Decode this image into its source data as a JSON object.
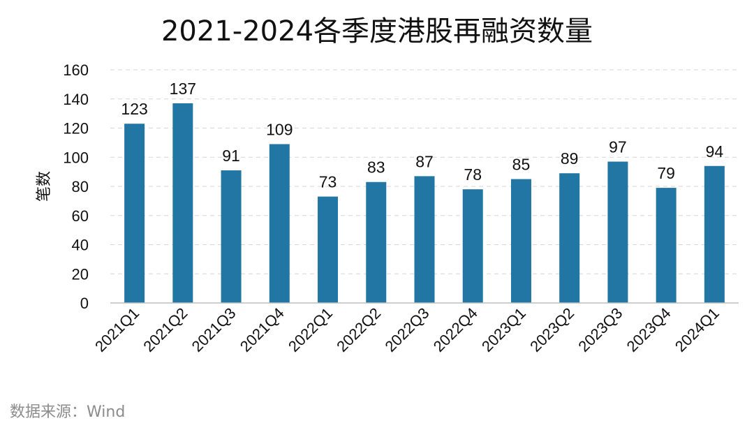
{
  "chart_data": {
    "type": "bar",
    "title": "2021-2024各季度港股再融资数量",
    "ylabel": "笔数",
    "xlabel": "",
    "ylim": [
      0,
      160
    ],
    "yticks": [
      0,
      20,
      40,
      60,
      80,
      100,
      120,
      140,
      160
    ],
    "grid": true,
    "categories": [
      "2021Q1",
      "2021Q2",
      "2021Q3",
      "2021Q4",
      "2022Q1",
      "2022Q2",
      "2022Q3",
      "2022Q4",
      "2023Q1",
      "2023Q2",
      "2023Q3",
      "2023Q4",
      "2024Q1"
    ],
    "values": [
      123,
      137,
      91,
      109,
      73,
      83,
      87,
      78,
      85,
      89,
      97,
      79,
      94
    ],
    "bar_color": "#2276a3"
  },
  "source": "数据来源：Wind"
}
